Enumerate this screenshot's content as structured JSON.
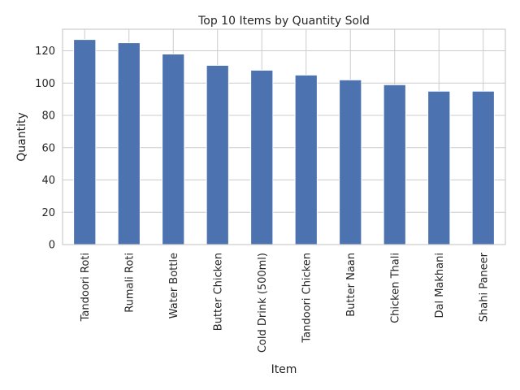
{
  "chart_data": {
    "type": "bar",
    "title": "Top 10 Items by Quantity Sold",
    "xlabel": "Item",
    "ylabel": "Quantity",
    "categories": [
      "Tandoori Roti",
      "Rumali Roti",
      "Water Bottle",
      "Butter Chicken",
      "Cold Drink (500ml)",
      "Tandoori Chicken",
      "Butter Naan",
      "Chicken Thali",
      "Dal Makhani",
      "Shahi Paneer"
    ],
    "values": [
      127,
      125,
      118,
      111,
      108,
      105,
      102,
      99,
      95,
      95
    ],
    "ylim": [
      0,
      133.35
    ],
    "yticks": [
      0,
      20,
      40,
      60,
      80,
      100,
      120
    ],
    "grid": true,
    "bar_color": "#4c72b0"
  }
}
